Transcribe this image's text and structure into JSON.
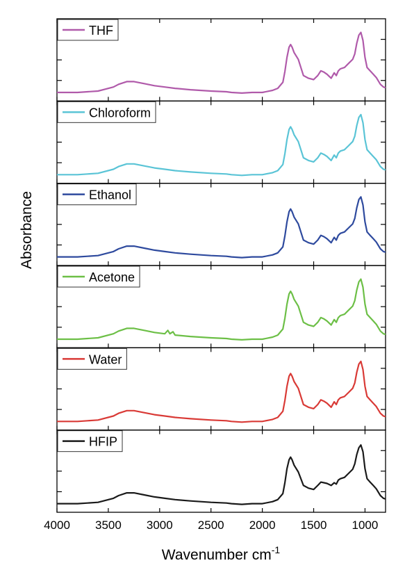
{
  "chart_data": {
    "type": "line",
    "layout": "stacked-panels",
    "xlabel": "Wavenumber cm",
    "xlabel_superscript": "-1",
    "ylabel": "Absorbance",
    "xlim": [
      4000,
      800
    ],
    "x_reversed": true,
    "xticks": [
      4000,
      3500,
      3000,
      2500,
      2000,
      1500,
      1000
    ],
    "xtick_labels": [
      "4000",
      "3500",
      "3000",
      "2500",
      "2000",
      "1500",
      "1000"
    ],
    "y_tick_labels_shown": false,
    "legend_placement": "top-left of each panel",
    "panels": [
      {
        "name": "THF",
        "color": "#b05aaa",
        "x": [
          4000,
          3800,
          3600,
          3450,
          3400,
          3320,
          3250,
          3150,
          3050,
          2950,
          2850,
          2700,
          2500,
          2350,
          2300,
          2200,
          2100,
          2000,
          1900,
          1850,
          1800,
          1780,
          1760,
          1740,
          1725,
          1710,
          1690,
          1650,
          1600,
          1550,
          1500,
          1460,
          1430,
          1400,
          1370,
          1330,
          1300,
          1280,
          1260,
          1240,
          1200,
          1160,
          1120,
          1100,
          1080,
          1060,
          1040,
          1020,
          1000,
          980,
          950,
          920,
          890,
          850,
          820,
          800
        ],
        "y": [
          0.03,
          0.03,
          0.05,
          0.11,
          0.15,
          0.19,
          0.19,
          0.16,
          0.13,
          0.11,
          0.09,
          0.07,
          0.05,
          0.04,
          0.03,
          0.02,
          0.03,
          0.03,
          0.06,
          0.09,
          0.18,
          0.34,
          0.55,
          0.7,
          0.74,
          0.7,
          0.62,
          0.52,
          0.28,
          0.24,
          0.22,
          0.28,
          0.35,
          0.33,
          0.3,
          0.24,
          0.32,
          0.28,
          0.35,
          0.38,
          0.4,
          0.46,
          0.52,
          0.6,
          0.76,
          0.88,
          0.92,
          0.8,
          0.55,
          0.4,
          0.35,
          0.3,
          0.25,
          0.15,
          0.11,
          0.1
        ]
      },
      {
        "name": "Chloroform",
        "color": "#5ac4d6",
        "x": [
          4000,
          3800,
          3600,
          3450,
          3400,
          3320,
          3250,
          3150,
          3050,
          2950,
          2850,
          2700,
          2500,
          2350,
          2300,
          2200,
          2100,
          2000,
          1900,
          1850,
          1800,
          1780,
          1760,
          1740,
          1725,
          1710,
          1690,
          1650,
          1600,
          1550,
          1500,
          1460,
          1430,
          1400,
          1370,
          1330,
          1300,
          1280,
          1260,
          1240,
          1200,
          1160,
          1120,
          1100,
          1080,
          1060,
          1040,
          1020,
          1000,
          980,
          950,
          920,
          890,
          850,
          820,
          800
        ],
        "y": [
          0.03,
          0.03,
          0.05,
          0.11,
          0.15,
          0.19,
          0.19,
          0.16,
          0.13,
          0.11,
          0.09,
          0.07,
          0.05,
          0.04,
          0.03,
          0.02,
          0.03,
          0.03,
          0.06,
          0.09,
          0.18,
          0.34,
          0.55,
          0.7,
          0.74,
          0.7,
          0.62,
          0.52,
          0.28,
          0.24,
          0.22,
          0.28,
          0.35,
          0.33,
          0.3,
          0.24,
          0.32,
          0.28,
          0.35,
          0.38,
          0.4,
          0.46,
          0.52,
          0.6,
          0.76,
          0.88,
          0.92,
          0.8,
          0.55,
          0.4,
          0.35,
          0.3,
          0.25,
          0.15,
          0.11,
          0.1
        ]
      },
      {
        "name": "Ethanol",
        "color": "#2e4a9e",
        "x": [
          4000,
          3800,
          3600,
          3450,
          3400,
          3320,
          3250,
          3150,
          3050,
          2950,
          2850,
          2700,
          2500,
          2350,
          2300,
          2200,
          2100,
          2000,
          1900,
          1850,
          1800,
          1780,
          1760,
          1740,
          1725,
          1710,
          1690,
          1650,
          1600,
          1550,
          1500,
          1460,
          1430,
          1400,
          1370,
          1330,
          1300,
          1280,
          1260,
          1240,
          1200,
          1160,
          1120,
          1100,
          1080,
          1060,
          1040,
          1020,
          1000,
          980,
          950,
          920,
          890,
          850,
          820,
          800
        ],
        "y": [
          0.03,
          0.03,
          0.05,
          0.11,
          0.15,
          0.19,
          0.19,
          0.16,
          0.13,
          0.11,
          0.09,
          0.07,
          0.05,
          0.04,
          0.03,
          0.02,
          0.03,
          0.03,
          0.06,
          0.09,
          0.18,
          0.34,
          0.55,
          0.7,
          0.74,
          0.7,
          0.62,
          0.52,
          0.28,
          0.24,
          0.22,
          0.28,
          0.35,
          0.33,
          0.3,
          0.24,
          0.32,
          0.28,
          0.35,
          0.38,
          0.4,
          0.46,
          0.52,
          0.6,
          0.76,
          0.88,
          0.92,
          0.8,
          0.55,
          0.4,
          0.35,
          0.3,
          0.25,
          0.15,
          0.11,
          0.1
        ]
      },
      {
        "name": "Acetone",
        "color": "#6cbf46",
        "x": [
          4000,
          3800,
          3600,
          3450,
          3400,
          3320,
          3250,
          3150,
          3050,
          2950,
          2920,
          2900,
          2870,
          2850,
          2700,
          2500,
          2350,
          2300,
          2200,
          2100,
          2000,
          1900,
          1850,
          1800,
          1780,
          1760,
          1740,
          1725,
          1710,
          1690,
          1650,
          1600,
          1550,
          1500,
          1460,
          1430,
          1400,
          1370,
          1330,
          1300,
          1280,
          1260,
          1240,
          1200,
          1160,
          1120,
          1100,
          1080,
          1060,
          1040,
          1020,
          1000,
          980,
          950,
          920,
          890,
          850,
          820,
          800
        ],
        "y": [
          0.03,
          0.03,
          0.05,
          0.11,
          0.15,
          0.19,
          0.19,
          0.16,
          0.13,
          0.11,
          0.16,
          0.11,
          0.14,
          0.09,
          0.07,
          0.05,
          0.04,
          0.03,
          0.02,
          0.03,
          0.03,
          0.06,
          0.09,
          0.18,
          0.34,
          0.55,
          0.7,
          0.74,
          0.7,
          0.62,
          0.52,
          0.28,
          0.24,
          0.22,
          0.28,
          0.35,
          0.33,
          0.3,
          0.24,
          0.32,
          0.28,
          0.35,
          0.38,
          0.4,
          0.46,
          0.52,
          0.6,
          0.76,
          0.88,
          0.92,
          0.8,
          0.55,
          0.4,
          0.35,
          0.3,
          0.25,
          0.15,
          0.11,
          0.1
        ]
      },
      {
        "name": "Water",
        "color": "#d93a36",
        "x": [
          4000,
          3800,
          3600,
          3450,
          3400,
          3320,
          3250,
          3150,
          3050,
          2950,
          2850,
          2700,
          2500,
          2350,
          2300,
          2200,
          2100,
          2000,
          1900,
          1850,
          1800,
          1780,
          1760,
          1740,
          1725,
          1710,
          1690,
          1650,
          1600,
          1550,
          1500,
          1460,
          1430,
          1400,
          1370,
          1330,
          1300,
          1280,
          1260,
          1240,
          1200,
          1160,
          1120,
          1100,
          1080,
          1060,
          1040,
          1020,
          1000,
          980,
          950,
          920,
          890,
          850,
          820,
          800
        ],
        "y": [
          0.03,
          0.03,
          0.05,
          0.11,
          0.15,
          0.19,
          0.19,
          0.16,
          0.13,
          0.11,
          0.09,
          0.07,
          0.05,
          0.04,
          0.03,
          0.02,
          0.03,
          0.03,
          0.06,
          0.09,
          0.18,
          0.34,
          0.55,
          0.7,
          0.74,
          0.7,
          0.62,
          0.52,
          0.28,
          0.24,
          0.22,
          0.28,
          0.35,
          0.33,
          0.3,
          0.24,
          0.32,
          0.28,
          0.35,
          0.38,
          0.4,
          0.46,
          0.52,
          0.6,
          0.76,
          0.88,
          0.92,
          0.8,
          0.55,
          0.4,
          0.35,
          0.3,
          0.25,
          0.15,
          0.11,
          0.1
        ]
      },
      {
        "name": "HFIP",
        "color": "#1a1a1a",
        "x": [
          4000,
          3800,
          3600,
          3450,
          3400,
          3320,
          3250,
          3150,
          3050,
          2950,
          2850,
          2700,
          2500,
          2350,
          2300,
          2200,
          2100,
          2000,
          1900,
          1850,
          1800,
          1780,
          1760,
          1740,
          1725,
          1710,
          1690,
          1650,
          1600,
          1550,
          1500,
          1460,
          1430,
          1400,
          1370,
          1330,
          1300,
          1280,
          1260,
          1240,
          1200,
          1160,
          1120,
          1100,
          1080,
          1060,
          1040,
          1020,
          1000,
          980,
          950,
          920,
          890,
          850,
          820,
          800
        ],
        "y": [
          0.03,
          0.03,
          0.05,
          0.11,
          0.15,
          0.19,
          0.19,
          0.16,
          0.13,
          0.11,
          0.09,
          0.07,
          0.05,
          0.04,
          0.03,
          0.02,
          0.03,
          0.03,
          0.06,
          0.09,
          0.18,
          0.34,
          0.55,
          0.68,
          0.72,
          0.68,
          0.6,
          0.5,
          0.3,
          0.26,
          0.24,
          0.3,
          0.35,
          0.34,
          0.33,
          0.3,
          0.34,
          0.32,
          0.38,
          0.4,
          0.42,
          0.48,
          0.54,
          0.62,
          0.76,
          0.86,
          0.9,
          0.8,
          0.55,
          0.4,
          0.35,
          0.3,
          0.25,
          0.15,
          0.11,
          0.1
        ]
      }
    ]
  }
}
